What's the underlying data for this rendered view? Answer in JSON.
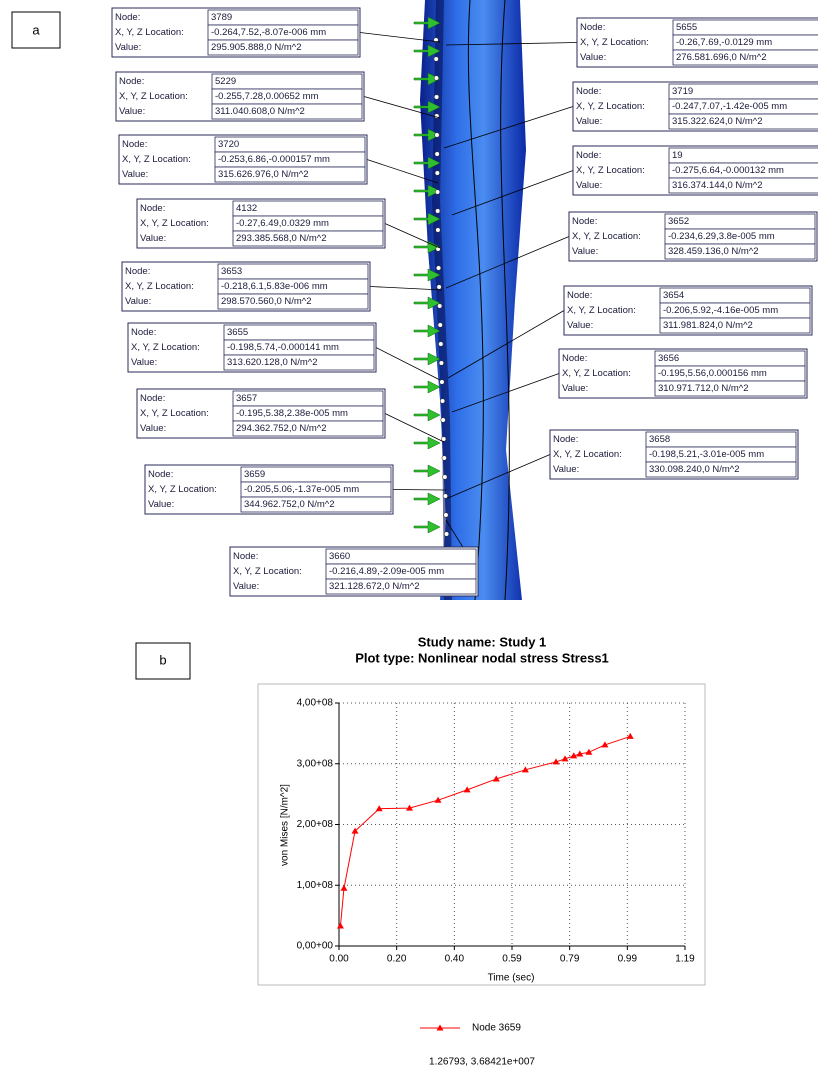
{
  "panel_a": {
    "label": "a",
    "field_labels": [
      "Node:",
      "X, Y, Z Location:",
      "Value:"
    ],
    "annotations": [
      {
        "node": "3789",
        "location": "-0.264,7.52,-8.07e-006 mm",
        "value": "295.905.888,0 N/m^2"
      },
      {
        "node": "5229",
        "location": "-0.255,7.28,0.00652 mm",
        "value": "311.040.608,0 N/m^2"
      },
      {
        "node": "3720",
        "location": "-0.253,6.86,-0.000157 mm",
        "value": "315.626.976,0 N/m^2"
      },
      {
        "node": "4132",
        "location": "-0.27,6.49,0.0329 mm",
        "value": "293.385.568,0 N/m^2"
      },
      {
        "node": "3653",
        "location": "-0.218,6.1,5.83e-006 mm",
        "value": "298.570.560,0 N/m^2"
      },
      {
        "node": "3655",
        "location": "-0.198,5.74,-0.000141 mm",
        "value": "313.620.128,0 N/m^2"
      },
      {
        "node": "3657",
        "location": "-0.195,5.38,2.38e-005 mm",
        "value": "294.362.752,0 N/m^2"
      },
      {
        "node": "3659",
        "location": "-0.205,5.06,-1.37e-005 mm",
        "value": "344.962.752,0 N/m^2"
      },
      {
        "node": "3660",
        "location": "-0.216,4.89,-2.09e-005 mm",
        "value": "321.128.672,0 N/m^2"
      },
      {
        "node": "5655",
        "location": "-0.26,7.69,-0.0129 mm",
        "value": "276.581.696,0 N/m^2"
      },
      {
        "node": "3719",
        "location": "-0.247,7.07,-1.42e-005 mm",
        "value": "315.322.624,0 N/m^2"
      },
      {
        "node": "19",
        "location": "-0.275,6.64,-0.000132 mm",
        "value": "316.374.144,0 N/m^2"
      },
      {
        "node": "3652",
        "location": "-0.234,6.29,3.8e-005 mm",
        "value": "328.459.136,0 N/m^2"
      },
      {
        "node": "3654",
        "location": "-0.206,5.92,-4.16e-005 mm",
        "value": "311.981.824,0 N/m^2"
      },
      {
        "node": "3656",
        "location": "-0.195,5.56,0.000156 mm",
        "value": "310.971.712,0 N/m^2"
      },
      {
        "node": "3658",
        "location": "-0.198,5.21,-3.01e-005 mm",
        "value": "330.098.240,0 N/m^2"
      }
    ]
  },
  "chart_data": {
    "type": "line",
    "panel_label": "b",
    "title": "Study name: Study 1",
    "subtitle": "Plot type: Nonlinear nodal stress Stress1",
    "x_label": "Time (sec)",
    "y_label": "von Mises [N/m^2]",
    "x": [
      0.005,
      0.017,
      0.055,
      0.138,
      0.242,
      0.34,
      0.44,
      0.54,
      0.64,
      0.745,
      0.776,
      0.806,
      0.827,
      0.858,
      0.913,
      1.0
    ],
    "series": [
      {
        "name": "Node 3659",
        "color": "#ff0000",
        "values": [
          33000000,
          95000000,
          189000000,
          226000000,
          227000000,
          240000000,
          257000000,
          275000000,
          290000000,
          303000000,
          308000000,
          313000000,
          316000000,
          319000000,
          331000000,
          345000000
        ]
      }
    ],
    "xlim": [
      0,
      1.188
    ],
    "ylim": [
      0,
      400000000
    ],
    "xticks": [
      {
        "value": 0,
        "label": "0.00"
      },
      {
        "value": 0.198,
        "label": "0.20"
      },
      {
        "value": 0.396,
        "label": "0.40"
      },
      {
        "value": 0.594,
        "label": "0.59"
      },
      {
        "value": 0.792,
        "label": "0.79"
      },
      {
        "value": 0.99,
        "label": "0.99"
      },
      {
        "value": 1.188,
        "label": "1.19"
      }
    ],
    "yticks": [
      {
        "value": 0,
        "label": "0,00+00"
      },
      {
        "value": 100000000,
        "label": "1,00+08"
      },
      {
        "value": 200000000,
        "label": "2,00+08"
      },
      {
        "value": 300000000,
        "label": "3,00+08"
      },
      {
        "value": 400000000,
        "label": "4,00+08"
      }
    ],
    "grid": true,
    "readout": "1.26793, 3.68421e+007"
  }
}
